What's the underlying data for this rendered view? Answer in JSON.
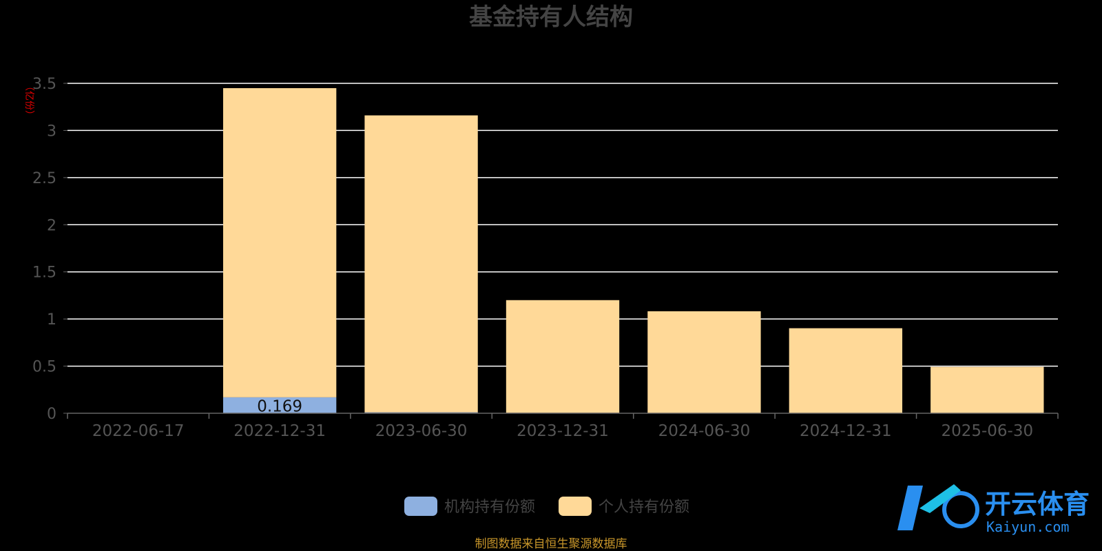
{
  "chart_data": {
    "type": "bar",
    "stacked": true,
    "title": "基金持有人结构",
    "ylabel": "（亿份）",
    "ylim": [
      0,
      3.5
    ],
    "yticks": [
      "0",
      "0.5",
      "1",
      "1.5",
      "2",
      "2.5",
      "3",
      "3.5"
    ],
    "categories": [
      "2022-06-17",
      "2022-12-31",
      "2023-06-30",
      "2023-12-31",
      "2024-06-30",
      "2024-12-31",
      "2025-06-30"
    ],
    "series": [
      {
        "name": "机构持有份额",
        "color": "#8eb0e0",
        "values": [
          0,
          0.169,
          0.01,
          0.005,
          0.002,
          0.002,
          0.002
        ],
        "labels": [
          "",
          "0.169",
          "",
          "",
          "",
          "",
          ""
        ]
      },
      {
        "name": "个人持有份额",
        "color": "#ffd998",
        "values": [
          0,
          3.28,
          3.15,
          1.195,
          1.08,
          0.9,
          0.49
        ],
        "labels": [
          "",
          "",
          "",
          "",
          "",
          "",
          ""
        ]
      }
    ],
    "grid": true,
    "legend_position": "bottom-center"
  },
  "source_note": "制图数据来自恒生聚源数据库",
  "watermark": {
    "cn": "开云体育",
    "en": "Kaiyun.com"
  },
  "colors": {
    "background": "#000000",
    "gridline": "#ffffff",
    "axis": "#666666"
  }
}
